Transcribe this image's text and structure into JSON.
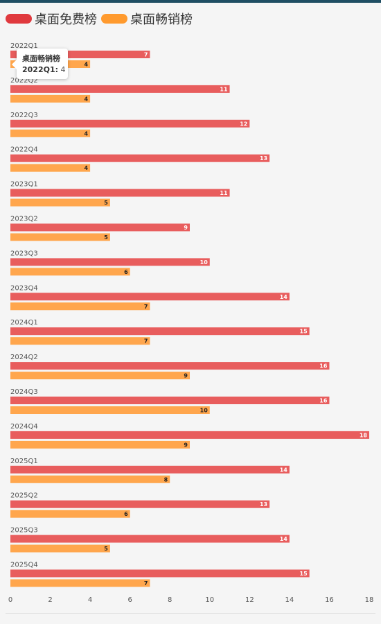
{
  "chart_data": {
    "type": "bar",
    "orientation": "horizontal",
    "categories": [
      "2022Q1",
      "2022Q2",
      "2022Q3",
      "2022Q4",
      "2023Q1",
      "2023Q2",
      "2023Q3",
      "2023Q4",
      "2024Q1",
      "2024Q2",
      "2024Q3",
      "2024Q4",
      "2025Q1",
      "2025Q2",
      "2025Q3",
      "2025Q4"
    ],
    "series": [
      {
        "name": "桌面免费榜",
        "color": "#e85d5d",
        "values": [
          7,
          11,
          12,
          13,
          11,
          9,
          10,
          14,
          15,
          16,
          16,
          18,
          14,
          13,
          14,
          15
        ]
      },
      {
        "name": "桌面畅销榜",
        "color": "#ffa64d",
        "values": [
          4,
          4,
          4,
          4,
          5,
          5,
          6,
          7,
          7,
          9,
          10,
          9,
          8,
          6,
          5,
          7
        ]
      }
    ],
    "xlim": [
      0,
      18
    ],
    "xticks": [
      0,
      2,
      4,
      6,
      8,
      10,
      12,
      14,
      16,
      18
    ],
    "legend_position": "top-left",
    "grid": false
  },
  "tooltip": {
    "series": "桌面畅销榜",
    "category": "2022Q1:",
    "value": "4"
  }
}
